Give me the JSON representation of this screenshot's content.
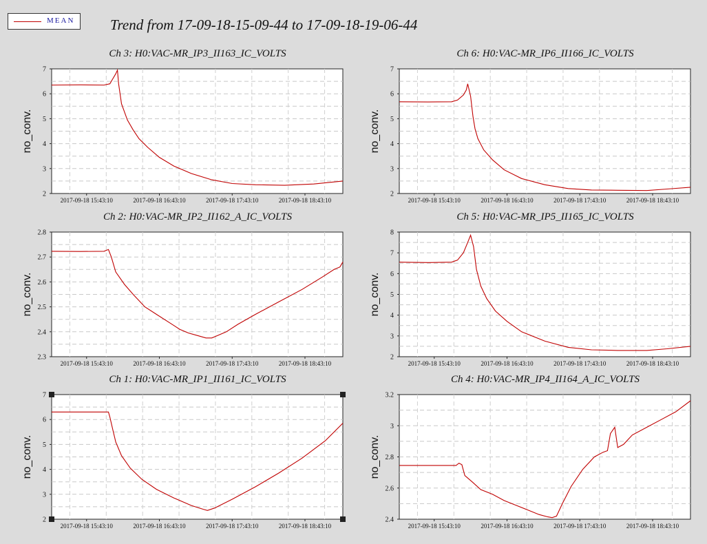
{
  "legend": {
    "label": "MEAN",
    "line_color": "#c00000"
  },
  "title": "Trend from 17-09-18-15-09-44 to 17-09-18-19-06-44",
  "x_tick_labels": [
    "2017-09-18 15:43:10",
    "2017-09-18 16:43:10",
    "2017-09-18 17:43:10",
    "2017-09-18 18:43:10"
  ],
  "chart_data": [
    {
      "type": "line",
      "title": "Ch 3: H0:VAC-MR_IP3_II163_IC_VOLTS",
      "ylabel": "no_conv.",
      "ylim": [
        2,
        7
      ],
      "yticks": [
        2,
        3,
        4,
        5,
        6,
        7
      ],
      "xlim": [
        0,
        100
      ],
      "grid": true,
      "series": [
        {
          "color": "#c00000",
          "x": [
            0,
            10,
            18,
            20,
            21,
            22,
            22.6,
            23,
            24,
            26,
            28,
            30,
            33,
            37,
            42,
            48,
            55,
            62,
            70,
            80,
            90,
            100
          ],
          "y": [
            6.35,
            6.36,
            6.35,
            6.4,
            6.6,
            6.8,
            6.95,
            6.4,
            5.6,
            4.95,
            4.55,
            4.2,
            3.85,
            3.45,
            3.1,
            2.8,
            2.55,
            2.4,
            2.35,
            2.33,
            2.38,
            2.5
          ]
        }
      ]
    },
    {
      "type": "line",
      "title": "Ch 6: H0:VAC-MR_IP6_II166_IC_VOLTS",
      "ylabel": "no_conv.",
      "ylim": [
        2,
        7
      ],
      "yticks": [
        2,
        3,
        4,
        5,
        6,
        7
      ],
      "xlim": [
        0,
        100
      ],
      "grid": true,
      "series": [
        {
          "color": "#c00000",
          "x": [
            0,
            10,
            18,
            20,
            22,
            23,
            23.5,
            24.5,
            25.3,
            26,
            27,
            29,
            32,
            36,
            42,
            50,
            58,
            66,
            75,
            85,
            92,
            100
          ],
          "y": [
            5.68,
            5.67,
            5.68,
            5.75,
            5.95,
            6.15,
            6.4,
            5.9,
            5.1,
            4.6,
            4.2,
            3.75,
            3.35,
            2.95,
            2.6,
            2.35,
            2.2,
            2.14,
            2.13,
            2.12,
            2.18,
            2.25
          ]
        }
      ]
    },
    {
      "type": "line",
      "title": "Ch 2: H0:VAC-MR_IP2_II162_A_IC_VOLTS",
      "ylabel": "no_conv.",
      "ylim": [
        2.3,
        2.8
      ],
      "yticks": [
        2.3,
        2.4,
        2.5,
        2.6,
        2.7,
        2.8
      ],
      "xlim": [
        0,
        100
      ],
      "grid": true,
      "series": [
        {
          "color": "#c00000",
          "x": [
            0,
            10,
            18,
            19.5,
            20.5,
            22,
            25,
            28,
            32,
            36,
            40,
            44,
            47,
            50,
            53,
            55,
            57,
            60,
            64,
            70,
            78,
            86,
            93,
            97,
            99,
            100
          ],
          "y": [
            2.723,
            2.722,
            2.723,
            2.73,
            2.7,
            2.64,
            2.59,
            2.55,
            2.5,
            2.47,
            2.44,
            2.41,
            2.395,
            2.385,
            2.375,
            2.375,
            2.385,
            2.4,
            2.43,
            2.47,
            2.52,
            2.57,
            2.62,
            2.65,
            2.66,
            2.68
          ]
        }
      ]
    },
    {
      "type": "line",
      "title": "Ch 5: H0:VAC-MR_IP5_II165_IC_VOLTS",
      "ylabel": "no_conv.",
      "ylim": [
        2,
        8
      ],
      "yticks": [
        2,
        3,
        4,
        5,
        6,
        7,
        8
      ],
      "xlim": [
        0,
        100
      ],
      "grid": true,
      "series": [
        {
          "color": "#c00000",
          "x": [
            0,
            10,
            18,
            20,
            22,
            23.5,
            24.5,
            25.5,
            26.5,
            28,
            30,
            33,
            37,
            42,
            50,
            58,
            66,
            75,
            85,
            92,
            100
          ],
          "y": [
            6.55,
            6.53,
            6.55,
            6.65,
            7.0,
            7.5,
            7.85,
            7.3,
            6.2,
            5.4,
            4.8,
            4.2,
            3.7,
            3.2,
            2.75,
            2.45,
            2.33,
            2.3,
            2.3,
            2.38,
            2.5
          ]
        }
      ]
    },
    {
      "type": "line",
      "title": "Ch 1: H0:VAC-MR_IP1_II161_IC_VOLTS",
      "ylabel": "no_conv.",
      "ylim": [
        2,
        7
      ],
      "yticks": [
        2,
        3,
        4,
        5,
        6,
        7
      ],
      "xlim": [
        0,
        100
      ],
      "grid": true,
      "series": [
        {
          "color": "#c00000",
          "x": [
            0,
            10,
            19.5,
            20,
            21,
            22,
            24,
            27,
            31,
            36,
            42,
            48,
            52,
            53.5,
            56,
            62,
            70,
            78,
            86,
            94,
            100
          ],
          "y": [
            6.3,
            6.3,
            6.3,
            6.1,
            5.6,
            5.1,
            4.55,
            4.05,
            3.6,
            3.2,
            2.85,
            2.55,
            2.4,
            2.35,
            2.45,
            2.8,
            3.3,
            3.85,
            4.45,
            5.15,
            5.85
          ]
        }
      ]
    },
    {
      "type": "line",
      "title": "Ch 4: H0:VAC-MR_IP4_II164_A_IC_VOLTS",
      "ylabel": "no_conv.",
      "ylim": [
        2.4,
        3.2
      ],
      "yticks": [
        2.4,
        2.6,
        2.8,
        3.0,
        3.2
      ],
      "xlim": [
        0,
        100
      ],
      "grid": true,
      "series": [
        {
          "color": "#c00000",
          "x": [
            0,
            10,
            19.5,
            20.5,
            21.5,
            22.5,
            25,
            28,
            32,
            36,
            40,
            44,
            48,
            51,
            52.5,
            54,
            56,
            59,
            63,
            67,
            70,
            71.5,
            72.5,
            74,
            75,
            77,
            80,
            85,
            90,
            95,
            100
          ],
          "y": [
            2.745,
            2.745,
            2.745,
            2.76,
            2.75,
            2.68,
            2.64,
            2.59,
            2.56,
            2.52,
            2.49,
            2.46,
            2.43,
            2.415,
            2.41,
            2.42,
            2.5,
            2.61,
            2.72,
            2.8,
            2.83,
            2.84,
            2.95,
            2.99,
            2.86,
            2.88,
            2.94,
            2.99,
            3.04,
            3.09,
            3.16
          ]
        }
      ]
    }
  ]
}
